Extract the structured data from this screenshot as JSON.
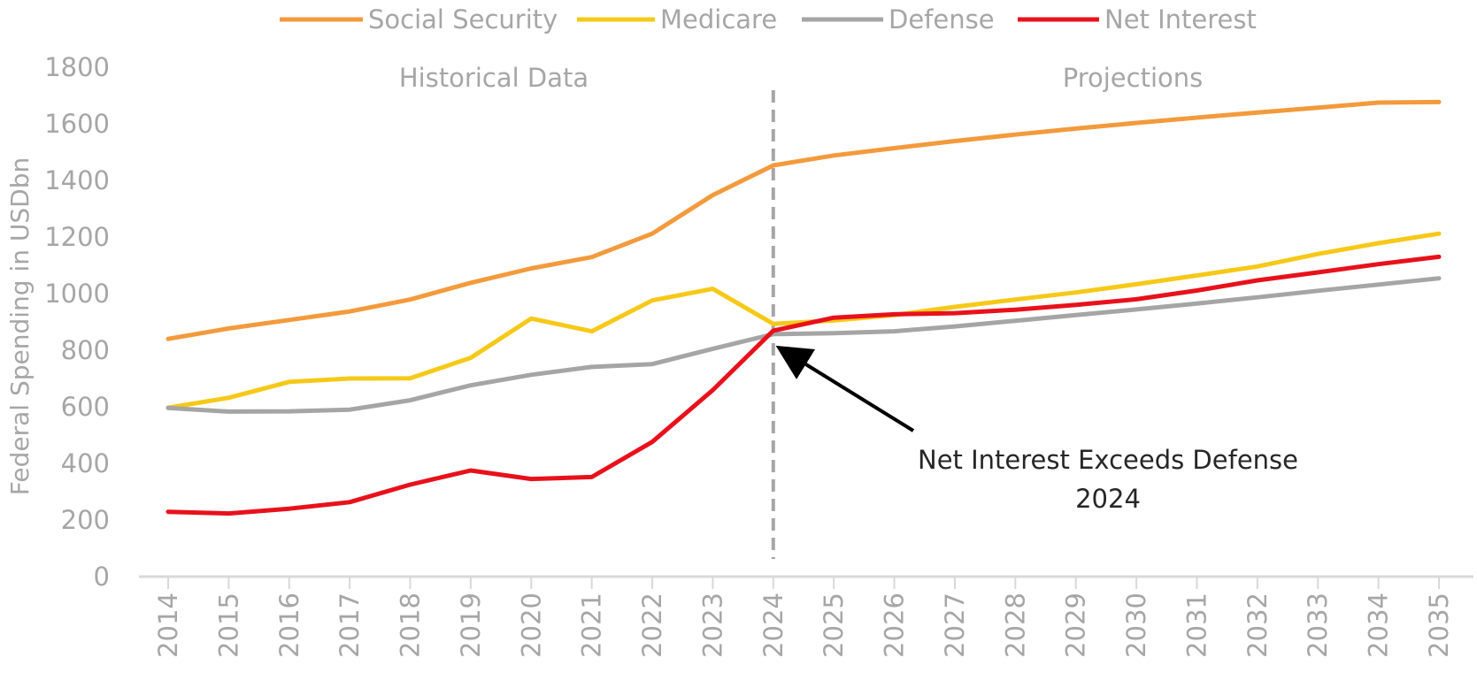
{
  "chart_data": {
    "type": "line",
    "title": "",
    "xlabel": "",
    "ylabel": "Federal Spending in USDbn",
    "x": [
      "2014",
      "2015",
      "2016",
      "2017",
      "2018",
      "2019",
      "2020",
      "2021",
      "2022",
      "2023",
      "2024",
      "2025",
      "2026",
      "2027",
      "2028",
      "2029",
      "2030",
      "2031",
      "2032",
      "2033",
      "2034",
      "2035"
    ],
    "ylim": [
      0,
      1800
    ],
    "yticks": [
      0,
      200,
      400,
      600,
      800,
      1000,
      1200,
      1400,
      1600,
      1800
    ],
    "grid": false,
    "legend_position": "top",
    "series": [
      {
        "name": "Social Security",
        "color": "#f39a3c",
        "values": [
          840,
          877,
          907,
          937,
          979,
          1038,
          1089,
          1129,
          1212,
          1348,
          1453,
          1488,
          1514,
          1539,
          1562,
          1583,
          1603,
          1622,
          1640,
          1657,
          1675,
          1677
        ]
      },
      {
        "name": "Medicare",
        "color": "#f6c919",
        "values": [
          597,
          632,
          688,
          700,
          701,
          773,
          912,
          867,
          976,
          1017,
          893,
          905,
          924,
          953,
          979,
          1004,
          1033,
          1064,
          1096,
          1140,
          1178,
          1212
        ]
      },
      {
        "name": "Defense",
        "color": "#a5a5a5",
        "values": [
          596,
          583,
          584,
          590,
          623,
          676,
          713,
          741,
          751,
          805,
          857,
          860,
          867,
          884,
          904,
          924,
          944,
          965,
          987,
          1010,
          1032,
          1054
        ]
      },
      {
        "name": "Net Interest",
        "color": "#e8111b",
        "values": [
          229,
          223,
          240,
          263,
          325,
          375,
          345,
          352,
          476,
          659,
          869,
          915,
          927,
          931,
          943,
          960,
          980,
          1011,
          1047,
          1075,
          1104,
          1130
        ]
      }
    ],
    "divider_year": "2024",
    "regions": [
      "Historical Data",
      "Projections"
    ],
    "annotation": {
      "line1": "Net Interest Exceeds Defense",
      "line2": "2024",
      "points_to_year": "2024"
    }
  }
}
